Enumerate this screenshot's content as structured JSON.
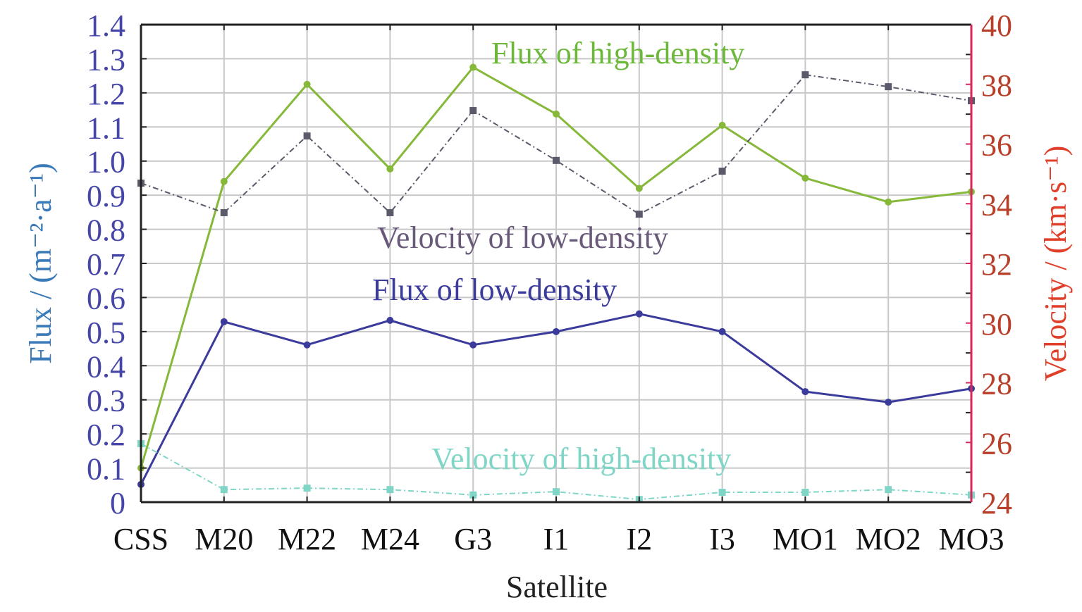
{
  "chart_data": {
    "type": "line",
    "xlabel": "Satellite",
    "ylabel_left": "Flux / (m⁻²·a⁻¹)",
    "ylabel_right": "Velocity / (km·s⁻¹)",
    "categories": [
      "CSS",
      "M20",
      "M22",
      "M24",
      "G3",
      "I1",
      "I2",
      "I3",
      "MO1",
      "MO2",
      "MO3"
    ],
    "ylim_left": [
      0,
      1.4
    ],
    "ylim_right": [
      24,
      40
    ],
    "yticks_left": [
      "0",
      "0.1",
      "0.2",
      "0.3",
      "0.4",
      "0.5",
      "0.6",
      "0.7",
      "0.8",
      "0.9",
      "1.0",
      "1.1",
      "1.2",
      "1.3",
      "1.4"
    ],
    "yticks_right": [
      "24",
      "26",
      "28",
      "30",
      "32",
      "34",
      "36",
      "38",
      "40"
    ],
    "grid": true,
    "series": [
      {
        "name": "Flux of high-density",
        "axis": "left",
        "style": "solid",
        "color": "#86b83a",
        "values": [
          0.1,
          0.94,
          1.225,
          0.977,
          1.275,
          1.138,
          0.92,
          1.105,
          0.95,
          0.88,
          0.91
        ]
      },
      {
        "name": "Flux of low-density",
        "axis": "left",
        "style": "solid",
        "color": "#3b3b9c",
        "values": [
          0.052,
          0.529,
          0.461,
          0.533,
          0.461,
          0.5,
          0.552,
          0.5,
          0.324,
          0.293,
          0.333
        ]
      },
      {
        "name": "Velocity of low-density",
        "axis": "right",
        "style": "dashed",
        "color": "#5a5a6a",
        "values": [
          34.69,
          33.7,
          36.27,
          33.7,
          37.12,
          35.45,
          33.65,
          35.09,
          38.32,
          37.92,
          37.45
        ]
      },
      {
        "name": "Velocity of high-density",
        "axis": "right",
        "style": "dashed",
        "color": "#7fd6c6",
        "values": [
          25.96,
          24.42,
          24.47,
          24.42,
          24.24,
          24.35,
          24.09,
          24.33,
          24.33,
          24.42,
          24.24
        ]
      }
    ],
    "colors": {
      "left_axis": "#4646a8",
      "left_label": "#3a7ab8",
      "right_axis": "#d6285a",
      "right_ticks": "#b8402a",
      "right_label": "#e0402a",
      "grid": "#c8c8c8"
    }
  }
}
